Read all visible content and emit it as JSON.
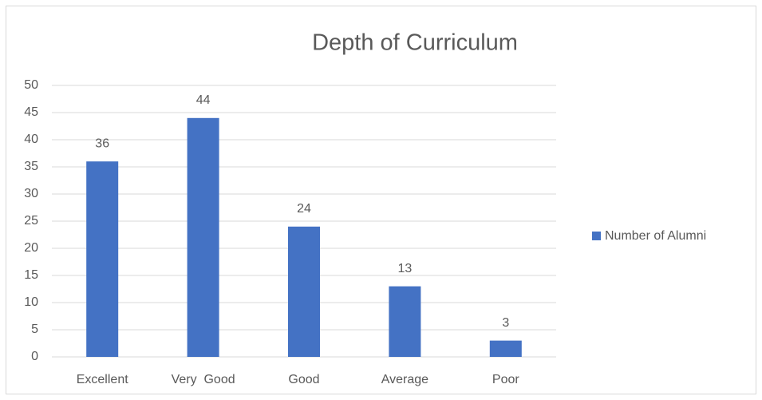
{
  "chart_data": {
    "type": "bar",
    "title": "Depth of Curriculum",
    "categories": [
      "Excellent",
      "Very  Good",
      "Good",
      "Average",
      "Poor"
    ],
    "series": [
      {
        "name": "Number of Alumni",
        "color": "#4472c4",
        "values": [
          36,
          44,
          24,
          13,
          3
        ]
      }
    ],
    "ylim": [
      0,
      50
    ],
    "yticks": [
      0,
      5,
      10,
      15,
      20,
      25,
      30,
      35,
      40,
      45,
      50
    ],
    "grid": true,
    "legend": "right"
  }
}
